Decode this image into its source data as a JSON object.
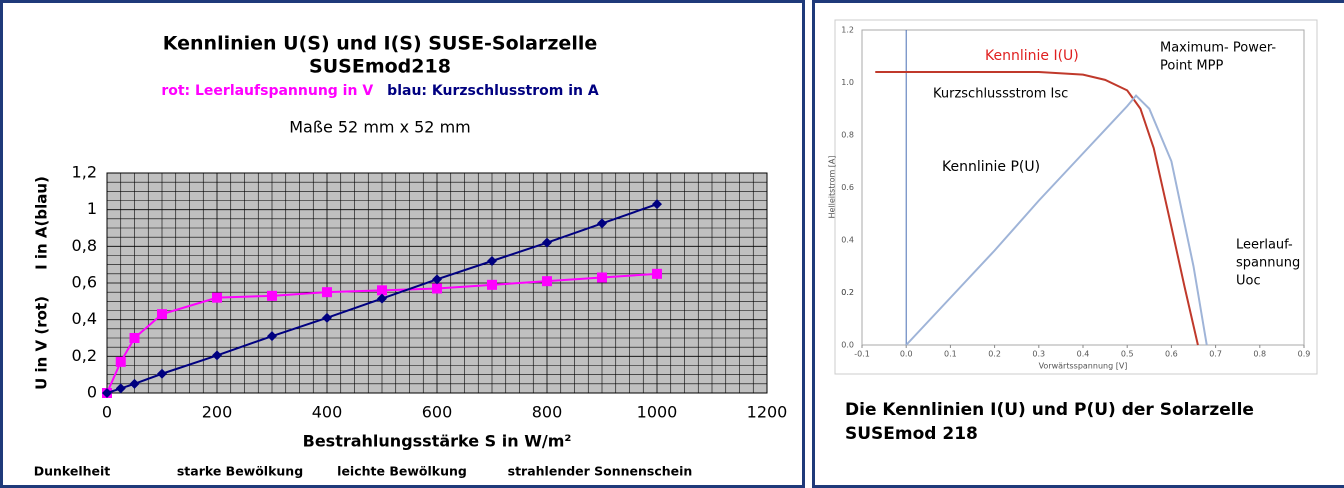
{
  "chart_data": [
    {
      "type": "line",
      "title": [
        "Kennlinien U(S) und I(S)   SUSE-Solarzelle",
        "SUSEmod218"
      ],
      "note": "Maße 52 mm x 52 mm",
      "xlabel": "Bestrahlungsstärke S in W/m²",
      "ylabel": "U in V (rot)     I in A(blau)",
      "annotations": [
        "Dunkelheit",
        "starke Bewölkung",
        "leichte Bewölkung",
        "strahlender Sonnenschein"
      ],
      "x": [
        0,
        25,
        50,
        100,
        200,
        300,
        400,
        500,
        600,
        700,
        800,
        900,
        1000
      ],
      "series": [
        {
          "name": "rot: Leerlaufspannung in V",
          "color": "#ff00ff",
          "marker": "square",
          "values": [
            0,
            0.17,
            0.3,
            0.43,
            0.52,
            0.53,
            0.55,
            0.56,
            0.57,
            0.59,
            0.61,
            0.63,
            0.65
          ]
        },
        {
          "name": "blau: Kurzschlusstrom in A",
          "color": "#000080",
          "marker": "diamond",
          "values": [
            0,
            0.025,
            0.05,
            0.105,
            0.205,
            0.31,
            0.41,
            0.515,
            0.62,
            0.72,
            0.82,
            0.925,
            1.03
          ]
        }
      ],
      "xlim": [
        0,
        1200
      ],
      "xticks": [
        0,
        200,
        400,
        600,
        800,
        1000,
        1200
      ],
      "ylim": [
        0,
        1.2
      ],
      "yticks": [
        0,
        {
          "value": 0.2,
          "label": "0,2"
        },
        {
          "value": 0.4,
          "label": "0,4"
        },
        {
          "value": 0.6,
          "label": "0,6"
        },
        {
          "value": 0.8,
          "label": "0,8"
        },
        1,
        {
          "value": 1.2,
          "label": "1,2"
        }
      ],
      "grid": true
    },
    {
      "type": "line",
      "xlabel": "Vorwärtsspannung [V]",
      "ylabel": "Helleitstrom [A]",
      "annotations": [
        [
          "Maximum- Power-",
          "Point MPP"
        ],
        [
          "Kurzschlussstrom Isc"
        ],
        [
          "Leerlauf-",
          "spannung",
          "Uoc"
        ]
      ],
      "series": [
        {
          "name": "Kennlinie I(U)",
          "color": "#c0392b",
          "x": [
            -0.07,
            0,
            0.1,
            0.2,
            0.3,
            0.4,
            0.45,
            0.5,
            0.53,
            0.56,
            0.6,
            0.63,
            0.66
          ],
          "values": [
            1.04,
            1.04,
            1.04,
            1.04,
            1.04,
            1.03,
            1.01,
            0.97,
            0.9,
            0.75,
            0.45,
            0.22,
            0
          ]
        },
        {
          "name": "Kennlinie P(U)",
          "color": "#9fb4d8",
          "x": [
            0,
            0.1,
            0.2,
            0.3,
            0.4,
            0.5,
            0.52,
            0.55,
            0.6,
            0.65,
            0.68
          ],
          "values": [
            0,
            0.18,
            0.36,
            0.55,
            0.73,
            0.91,
            0.95,
            0.9,
            0.7,
            0.3,
            0
          ]
        }
      ],
      "xlim": [
        -0.1,
        0.9
      ],
      "xticks": [
        -0.1,
        {
          "value": 0,
          "label": "0.0"
        },
        0.1,
        0.2,
        0.3,
        0.4,
        0.5,
        0.6,
        0.7,
        0.8,
        0.9
      ],
      "ylim": [
        0,
        1.2
      ],
      "yticks": [
        {
          "value": 0,
          "label": "0.0"
        },
        0.2,
        0.4,
        0.6,
        0.8,
        {
          "value": 1,
          "label": "1.0"
        },
        0.2,
        1.2
      ],
      "grid": false
    }
  ],
  "caption": [
    "Die Kennlinien I(U) und P(U) der Solarzelle",
    "SUSEmod 218"
  ]
}
